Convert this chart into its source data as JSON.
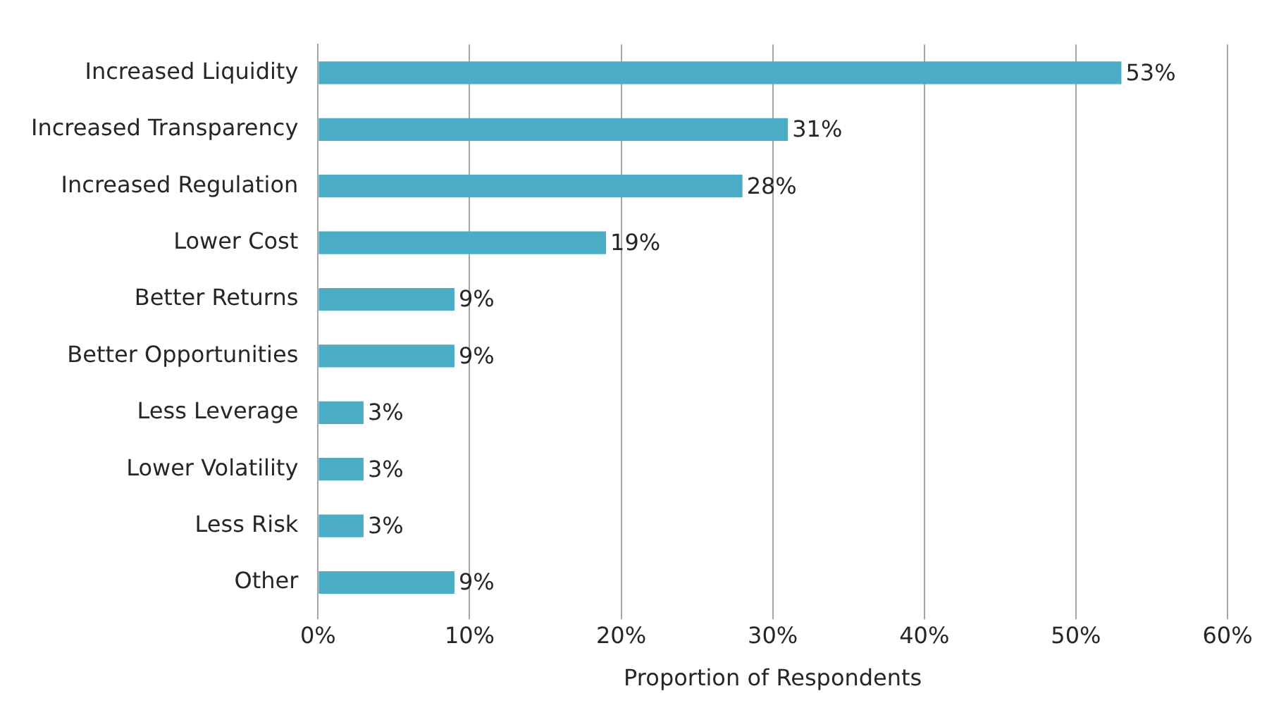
{
  "chart_data": {
    "type": "bar",
    "orientation": "horizontal",
    "xlabel": "Proportion of Respondents",
    "categories": [
      "Increased Liquidity",
      "Increased Transparency",
      "Increased Regulation",
      "Lower Cost",
      "Better Returns",
      "Better Opportunities",
      "Less Leverage",
      "Lower Volatility",
      "Less Risk",
      "Other"
    ],
    "values": [
      53,
      31,
      28,
      19,
      9,
      9,
      3,
      3,
      3,
      9
    ],
    "value_labels": [
      "53%",
      "31%",
      "28%",
      "19%",
      "9%",
      "9%",
      "3%",
      "3%",
      "3%",
      "9%"
    ],
    "color": "#4bacc6",
    "xlim": [
      0,
      60
    ],
    "xticks": [
      {
        "value": 0,
        "label": "0%"
      },
      {
        "value": 10,
        "label": "10%"
      },
      {
        "value": 20,
        "label": "20%"
      },
      {
        "value": 30,
        "label": "30%"
      },
      {
        "value": 40,
        "label": "40%"
      },
      {
        "value": 50,
        "label": "50%"
      },
      {
        "value": 60,
        "label": "60%"
      }
    ],
    "grid": "x",
    "legend": false
  }
}
